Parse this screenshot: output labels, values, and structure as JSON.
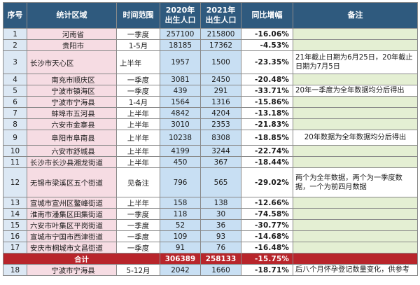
{
  "headers": {
    "no": "序号",
    "region": "统计区域",
    "period": "时间范围",
    "births_2020": "2020年\n出生人口",
    "births_2021": "2021年\n出生人口",
    "growth": "同比增幅",
    "note": "备注"
  },
  "rows": [
    {
      "no": "1",
      "region": "河南省",
      "period": "一季度",
      "v2020": "257100",
      "v2021": "215800",
      "growth": "-16.06%",
      "note": ""
    },
    {
      "no": "2",
      "region": "贵阳市",
      "period": "1-5月",
      "v2020": "18185",
      "v2021": "17362",
      "growth": "-4.53%",
      "note": ""
    },
    {
      "no": "3",
      "region": "长沙市天心区",
      "period": "上半年",
      "v2020": "1957",
      "v2021": "1500",
      "growth": "-23.35%",
      "note": "21年截止日期为6月25日，20年截止日期为7月5日"
    },
    {
      "no": "4",
      "region": "南充市顺庆区",
      "period": "一季度",
      "v2020": "3081",
      "v2021": "2450",
      "growth": "-20.48%",
      "note": ""
    },
    {
      "no": "5",
      "region": "宁波市镇海区",
      "period": "一季度",
      "v2020": "439",
      "v2021": "291",
      "growth": "-33.71%",
      "note": "20年一季度为全年数据均分后得出"
    },
    {
      "no": "6",
      "region": "宁波市宁海县",
      "period": "1-4月",
      "v2020": "1564",
      "v2021": "1316",
      "growth": "-15.86%",
      "note": ""
    },
    {
      "no": "7",
      "region": "蚌埠市五河县",
      "period": "上半年",
      "v2020": "4842",
      "v2021": "4204",
      "growth": "-13.18%",
      "note": ""
    },
    {
      "no": "8",
      "region": "六安市金寨县",
      "period": "上半年",
      "v2020": "3010",
      "v2021": "2353",
      "growth": "-21.83%",
      "note": ""
    },
    {
      "no": "9",
      "region": "阜阳市阜南县",
      "period": "上半年",
      "v2020": "10238",
      "v2021": "8308",
      "growth": "-18.85%",
      "note": "20年数据为全年数据均分后得出"
    },
    {
      "no": "10",
      "region": "六安市舒城县",
      "period": "上半年",
      "v2020": "4199",
      "v2021": "3244",
      "growth": "-22.74%",
      "note": ""
    },
    {
      "no": "11",
      "region": "长沙市长沙县湘龙街道",
      "period": "上半年",
      "v2020": "450",
      "v2021": "367",
      "growth": "-18.44%",
      "note": ""
    },
    {
      "no": "12",
      "region": "无锡市梁溪区五个街道",
      "period": "见备注",
      "v2020": "796",
      "v2021": "565",
      "growth": "-29.02%",
      "note": "两个为全年数据，两个为一季度数据，一个为前四月数据"
    },
    {
      "no": "13",
      "region": "宣城市宣州区鳌峰街道",
      "period": "上半年",
      "v2020": "158",
      "v2021": "138",
      "growth": "-12.66%",
      "note": ""
    },
    {
      "no": "14",
      "region": "淮南市潘集区田集街道",
      "period": "一季度",
      "v2020": "118",
      "v2021": "30",
      "growth": "-74.58%",
      "note": ""
    },
    {
      "no": "15",
      "region": "六安市叶集区平岗街道",
      "period": "一季度",
      "v2020": "52",
      "v2021": "36",
      "growth": "-30.77%",
      "note": ""
    },
    {
      "no": "16",
      "region": "宣城市宁国市西津街道",
      "period": "一季度",
      "v2020": "109",
      "v2021": "93",
      "growth": "-14.68%",
      "note": ""
    },
    {
      "no": "17",
      "region": "安庆市桐城市文昌街道",
      "period": "一季度",
      "v2020": "91",
      "v2021": "76",
      "growth": "-16.48%",
      "note": ""
    }
  ],
  "total": {
    "label": "合计",
    "v2020": "306389",
    "v2021": "258133",
    "growth": "-15.75%"
  },
  "extra_row": {
    "no": "18",
    "region": "宁波市宁海县",
    "period": "5-12月",
    "v2020": "2042",
    "v2021": "1660",
    "growth": "-18.71%",
    "note": "后八个月怀孕登记数量变化，供参考"
  },
  "colors": {
    "header_bg": "#2f5a7e",
    "total_bg": "#b8252b",
    "region_bg": "#f6dce3",
    "births_bg": "#c8dff3",
    "note_bg": "#e4efd3",
    "no_bg": "#dce8f4"
  },
  "chart_data": {
    "type": "table",
    "columns": [
      "序号",
      "统计区域",
      "时间范围",
      "2020年出生人口",
      "2021年出生人口",
      "同比增幅",
      "备注"
    ],
    "births_2020": [
      257100,
      18185,
      1957,
      3081,
      439,
      1564,
      4842,
      3010,
      10238,
      4199,
      450,
      796,
      158,
      118,
      52,
      109,
      91
    ],
    "births_2021": [
      215800,
      17362,
      1500,
      2450,
      291,
      1316,
      4204,
      2353,
      8308,
      3244,
      367,
      565,
      138,
      30,
      36,
      93,
      76
    ],
    "growth_pct": [
      -16.06,
      -4.53,
      -23.35,
      -20.48,
      -33.71,
      -15.86,
      -13.18,
      -21.83,
      -18.85,
      -22.74,
      -18.44,
      -29.02,
      -12.66,
      -74.58,
      -30.77,
      -14.68,
      -16.48
    ],
    "total": {
      "births_2020": 306389,
      "births_2021": 258133,
      "growth_pct": -15.75
    },
    "extra": {
      "births_2020": 2042,
      "births_2021": 1660,
      "growth_pct": -18.71
    }
  }
}
